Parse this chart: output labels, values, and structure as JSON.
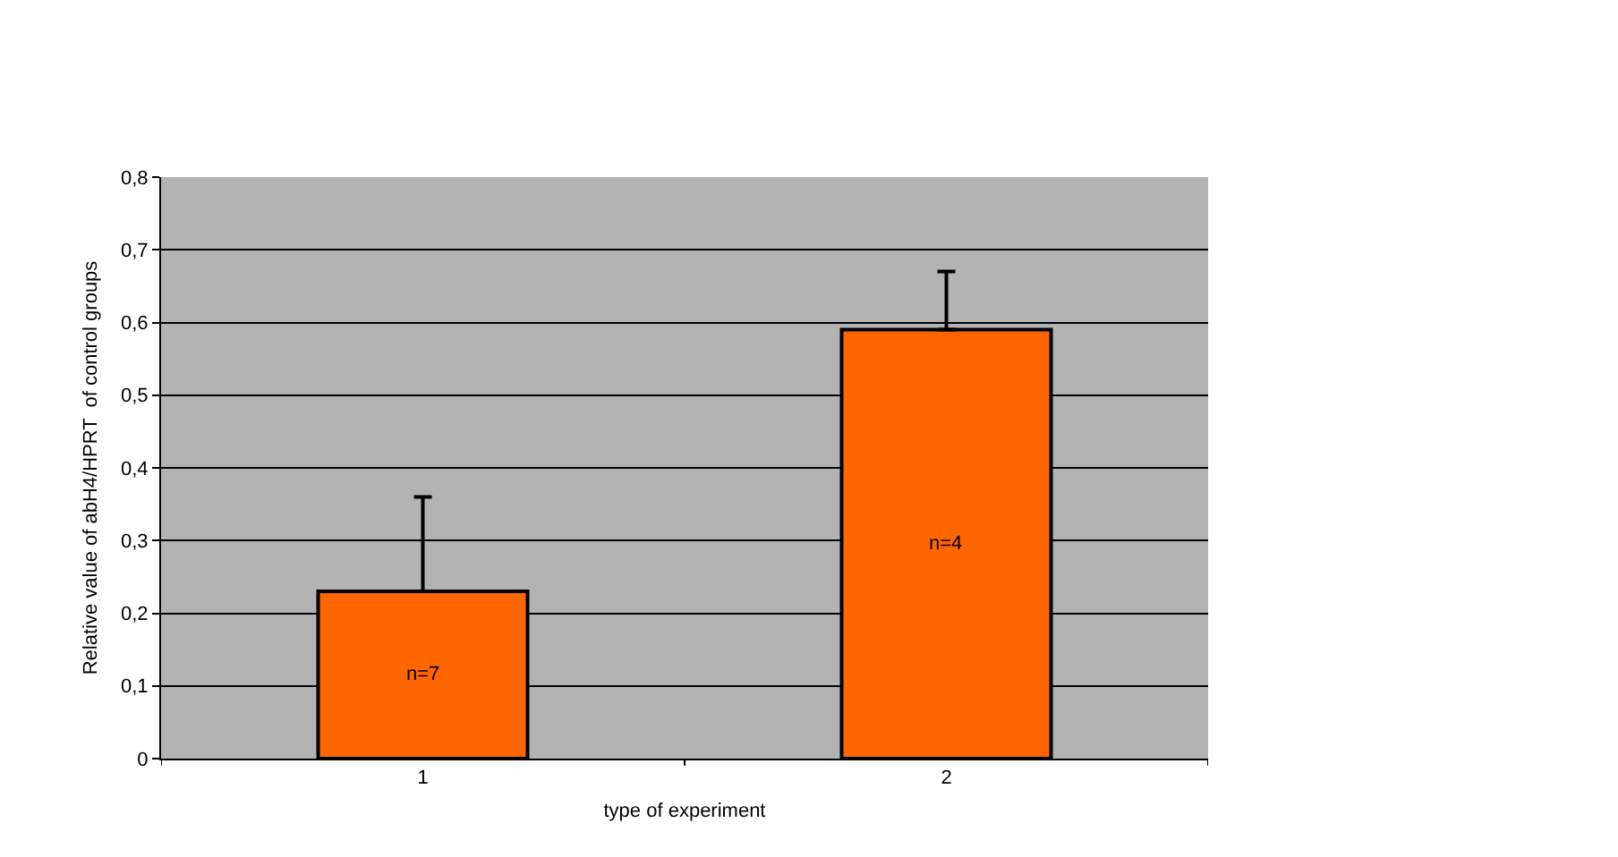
{
  "chart_data": {
    "type": "bar",
    "xlabel": "type of experiment",
    "ylabel": "Relative value of abH4/HPRT  of control groups",
    "categories": [
      "1",
      "2"
    ],
    "values": [
      0.23,
      0.59
    ],
    "color": "#ff6600",
    "errors": [
      [
        0.23,
        0.36
      ],
      [
        0.59,
        0.67
      ]
    ],
    "ylim": [
      0,
      0.8
    ],
    "yticks": [
      0,
      {
        "value": 0.1,
        "label": "0,1"
      },
      {
        "value": 0.2,
        "label": "0,2"
      },
      {
        "value": 0.3,
        "label": "0,3"
      },
      {
        "value": 0.4,
        "label": "0,4"
      },
      {
        "value": 0.5,
        "label": "0,5"
      },
      {
        "value": 0.6,
        "label": "0,6"
      },
      {
        "value": 0.7,
        "label": "0,7"
      },
      {
        "value": 0.8,
        "label": "0,8"
      }
    ],
    "grid": "y",
    "legend": false,
    "annotations": [
      "n=7",
      "n=4"
    ]
  }
}
